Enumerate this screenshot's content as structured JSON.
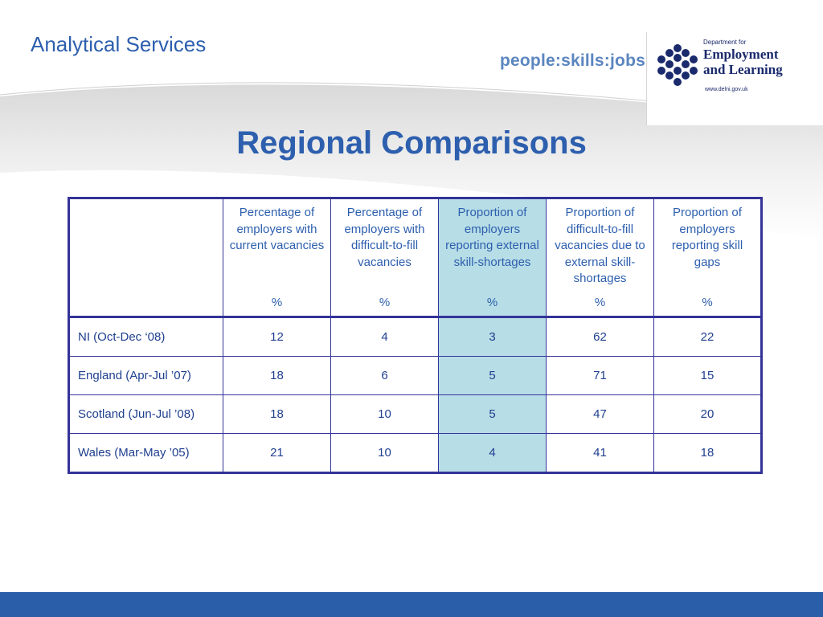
{
  "header": {
    "section": "Analytical Services",
    "tagline": "people:skills:jobs:",
    "logo": {
      "dept": "Department for",
      "name_line1": "Employment",
      "name_line2": "and Learning",
      "url": "www.delni.gov.uk",
      "icon": "hexagon-cluster-logo-icon"
    }
  },
  "title": "Regional Comparisons",
  "colors": {
    "accent": "#2d5fae",
    "table_border": "#333399",
    "highlight_column": "#b7dde6",
    "footer": "#2a5ea8"
  },
  "table": {
    "columns": [
      {
        "label": "Percentage of employers with current vacancies",
        "unit": "%"
      },
      {
        "label": "Percentage of employers with difficult-to-fill vacancies",
        "unit": "%"
      },
      {
        "label": "Proportion of employers reporting external skill-shortages",
        "unit": "%"
      },
      {
        "label": "Proportion of difficult-to-fill vacancies due to external skill-shortages",
        "unit": "%"
      },
      {
        "label": "Proportion of employers reporting skill gaps",
        "unit": "%"
      }
    ],
    "rows": [
      {
        "region": "NI  (Oct-Dec ‘08)",
        "values": [
          "12",
          "4",
          "3",
          "62",
          "22"
        ]
      },
      {
        "region": "England (Apr-Jul ’07)",
        "values": [
          "18",
          "6",
          "5",
          "71",
          "15"
        ]
      },
      {
        "region": "Scotland (Jun-Jul ’08)",
        "values": [
          "18",
          "10",
          "5",
          "47",
          "20"
        ]
      },
      {
        "region": "Wales (Mar-May ’05)",
        "values": [
          "21",
          "10",
          "4",
          "41",
          "18"
        ]
      }
    ]
  }
}
